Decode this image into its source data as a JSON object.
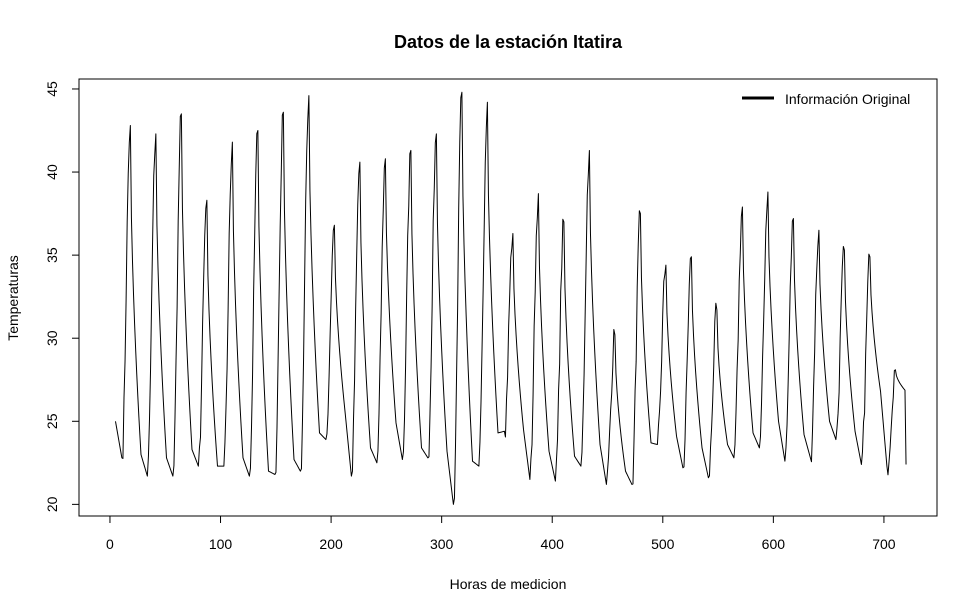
{
  "chart_data": {
    "type": "line",
    "title": "Datos de la estación Itatira",
    "xlabel": "Horas de medicion",
    "ylabel": "Temperaturas",
    "xlim": [
      -28,
      748
    ],
    "ylim": [
      19.3,
      45.6
    ],
    "xticks": [
      0,
      100,
      200,
      300,
      400,
      500,
      600,
      700
    ],
    "yticks": [
      20,
      25,
      30,
      35,
      40,
      45
    ],
    "grid": false,
    "legend": {
      "position": "top-right",
      "entries": [
        "Información Original"
      ]
    },
    "series": [
      {
        "name": "Información Original",
        "color": "#000000",
        "cycles": [
          [
            25.0,
            22.8,
            42.8
          ],
          [
            23.0,
            21.7,
            42.3
          ],
          [
            22.8,
            21.7,
            43.5
          ],
          [
            23.3,
            22.3,
            38.3
          ],
          [
            22.3,
            22.3,
            41.8
          ],
          [
            22.8,
            21.7,
            42.5
          ],
          [
            22.0,
            21.8,
            43.6
          ],
          [
            22.7,
            22.0,
            44.6
          ],
          [
            24.3,
            23.9,
            36.8
          ],
          [
            25.6,
            21.7,
            40.6
          ],
          [
            23.4,
            22.5,
            40.8
          ],
          [
            24.9,
            22.7,
            41.3
          ],
          [
            23.4,
            22.8,
            42.3
          ],
          [
            23.2,
            20.0,
            44.8
          ],
          [
            22.6,
            22.3,
            44.2
          ],
          [
            24.3,
            24.4,
            36.3
          ],
          [
            24.5,
            21.5,
            38.7
          ],
          [
            23.2,
            21.4,
            37.0
          ],
          [
            22.9,
            22.3,
            41.3
          ],
          [
            23.6,
            21.2,
            30.2
          ],
          [
            22.0,
            21.2,
            37.5
          ],
          [
            23.7,
            23.6,
            34.4
          ],
          [
            24.1,
            22.2,
            34.9
          ],
          [
            23.4,
            21.6,
            31.7
          ],
          [
            23.6,
            22.8,
            37.9
          ],
          [
            24.3,
            23.4,
            38.8
          ],
          [
            25.0,
            22.6,
            37.2
          ],
          [
            24.2,
            22.8,
            36.5
          ],
          [
            25.0,
            23.9,
            35.3
          ],
          [
            24.4,
            22.4,
            34.9
          ],
          [
            26.8,
            22.3,
            28.1
          ]
        ]
      }
    ]
  }
}
